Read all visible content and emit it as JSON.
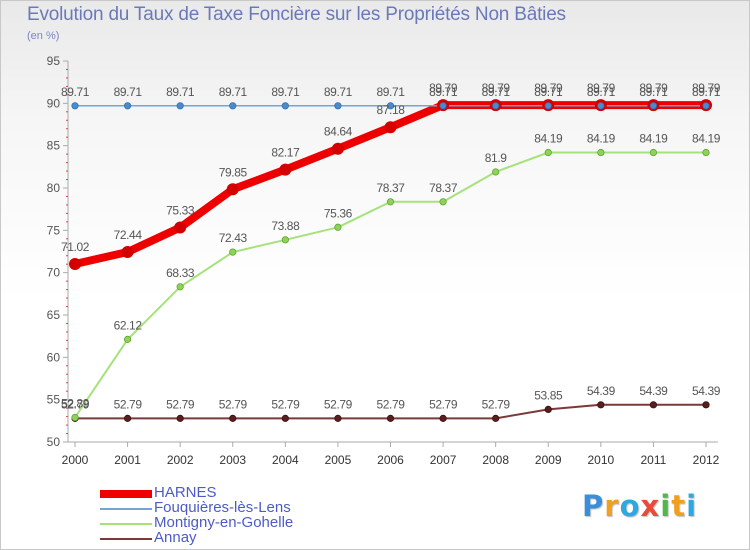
{
  "header": {
    "title": "Evolution du Taux de Taxe Foncière sur les Propriétés Non Bâties",
    "unit": "(en %)"
  },
  "logo": {
    "letters": [
      "P",
      "r",
      "o",
      "x",
      "i",
      "t",
      "i"
    ],
    "colors": [
      "#3a8fd8",
      "#f0a020",
      "#2ea8e0",
      "#e84b3a",
      "#4fb848",
      "#f0a020",
      "#2ea8e0"
    ]
  },
  "chart_data": {
    "type": "line",
    "title": "Evolution du Taux de Taxe Foncière sur les Propriétés Non Bâties",
    "ylabel": "(en %)",
    "xlabel": "",
    "x": [
      "2000",
      "2001",
      "2002",
      "2003",
      "2004",
      "2005",
      "2006",
      "2007",
      "2008",
      "2009",
      "2010",
      "2011",
      "2012"
    ],
    "ylim": [
      50,
      95
    ],
    "yticks": [
      "50",
      "55",
      "60",
      "65",
      "70",
      "75",
      "80",
      "85",
      "90",
      "95"
    ],
    "grid": false,
    "legend_position": "bottom-left",
    "series": [
      {
        "name": "HARNES",
        "color": "#ee0000",
        "values": [
          71.02,
          72.44,
          75.33,
          79.85,
          82.17,
          84.64,
          87.18,
          89.79,
          89.79,
          89.79,
          89.79,
          89.79,
          89.79
        ],
        "labels": [
          "71.02",
          "72.44",
          "75.33",
          "79.85",
          "82.17",
          "84.64",
          "87.18",
          "89.79",
          "89.79",
          "89.79",
          "89.79",
          "89.79",
          "89.79"
        ]
      },
      {
        "name": "Fouquières-lès-Lens",
        "color": "#6fa6d6",
        "values": [
          89.71,
          89.71,
          89.71,
          89.71,
          89.71,
          89.71,
          89.71,
          89.71,
          89.71,
          89.71,
          89.71,
          89.71,
          89.71
        ],
        "labels": [
          "89.71",
          "89.71",
          "89.71",
          "89.71",
          "89.71",
          "89.71",
          "89.71",
          "89.71",
          "89.71",
          "89.71",
          "89.71",
          "89.71",
          "89.71"
        ]
      },
      {
        "name": "Montigny-en-Gohelle",
        "color": "#a6e27a",
        "values": [
          52.89,
          62.12,
          68.33,
          72.43,
          73.88,
          75.36,
          78.37,
          78.37,
          81.9,
          84.19,
          84.19,
          84.19,
          84.19
        ],
        "labels": [
          "52.89",
          "62.12",
          "68.33",
          "72.43",
          "73.88",
          "75.36",
          "78.37",
          "78.37",
          "81.9",
          "84.19",
          "84.19",
          "84.19",
          "84.19"
        ]
      },
      {
        "name": "Annay",
        "color": "#7a3a3a",
        "values": [
          52.79,
          52.79,
          52.79,
          52.79,
          52.79,
          52.79,
          52.79,
          52.79,
          52.79,
          53.85,
          54.39,
          54.39,
          54.39
        ],
        "labels": [
          "52.79",
          "52.79",
          "52.79",
          "52.79",
          "52.79",
          "52.79",
          "52.79",
          "52.79",
          "52.79",
          "53.85",
          "54.39",
          "54.39",
          "54.39"
        ]
      }
    ]
  }
}
